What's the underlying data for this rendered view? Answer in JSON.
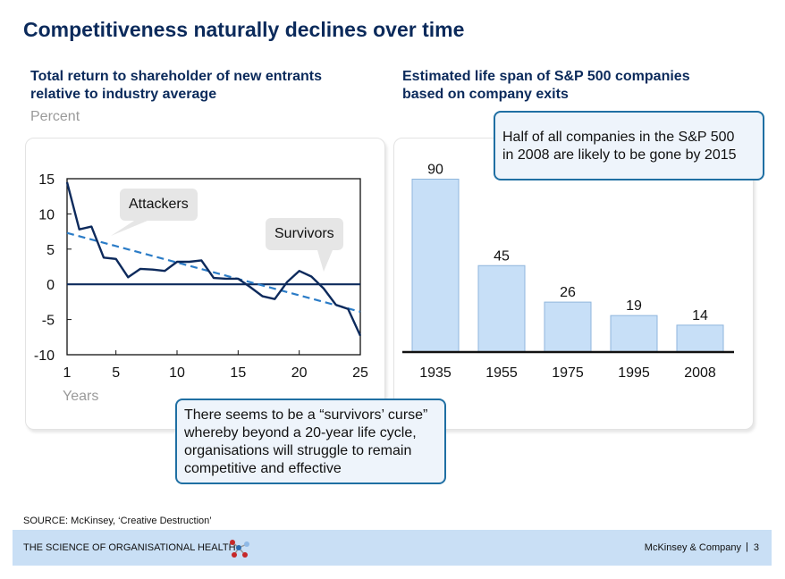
{
  "title": "Competitiveness naturally declines over time",
  "left": {
    "subtitle_line1": "Total return to shareholder of new entrants",
    "subtitle_line2": "relative to industry average",
    "unit": "Percent",
    "x_label": "Years",
    "attackers_label": "Attackers",
    "survivors_label": "Survivors"
  },
  "right": {
    "subtitle_line1": "Estimated life span of S&P 500 companies",
    "subtitle_line2": "based on company exits"
  },
  "callouts": {
    "sp500_line1": "Half of all companies in the S&P 500",
    "sp500_line2": "in 2008 are likely to be gone by 2015",
    "curse_line1": "There seems to be a “survivors’ curse”",
    "curse_line2": "whereby beyond a 20-year life cycle,",
    "curse_line3": "organisations will struggle to remain",
    "curse_line4": "competitive and effective"
  },
  "source": "SOURCE: McKinsey, ‘Creative Destruction’",
  "footer": {
    "left_text": "THE SCIENCE OF ORGANISATIONAL HEALTH",
    "right_text": "McKinsey & Company",
    "separator": "|",
    "page": "3"
  },
  "colors": {
    "navy": "#0b2a5b",
    "line": "#0d2a5c",
    "trend": "#2b7cc7",
    "bar_fill": "#c7dff7",
    "bar_stroke": "#8fb6dc",
    "callout_border": "#1f6fa3"
  },
  "chart_data": [
    {
      "type": "line",
      "x": [
        1,
        2,
        3,
        4,
        5,
        6,
        7,
        8,
        9,
        10,
        11,
        12,
        13,
        14,
        15,
        16,
        17,
        18,
        19,
        20,
        21,
        22,
        23,
        24,
        25
      ],
      "series": [
        {
          "values": [
            14.5,
            7.8,
            8.2,
            3.8,
            3.6,
            1.0,
            2.2,
            2.1,
            1.9,
            3.2,
            3.2,
            3.4,
            0.9,
            0.8,
            0.8,
            -0.4,
            -1.7,
            -2.1,
            0.3,
            1.9,
            1.1,
            -0.6,
            -2.9,
            -3.5,
            -7.3
          ]
        },
        {
          "values": [
            7.3,
            -3.9
          ],
          "x": [
            1,
            25
          ],
          "style": "dashed-trend"
        }
      ],
      "xticks": [
        1,
        5,
        10,
        15,
        20,
        25
      ],
      "yticks": [
        15,
        10,
        5,
        0,
        -5,
        -10
      ],
      "xlim": [
        1,
        25
      ],
      "ylim": [
        -10,
        15
      ],
      "xlabel": "Years",
      "ylabel": "Percent",
      "annotations": [
        "Attackers",
        "Survivors"
      ]
    },
    {
      "type": "bar",
      "categories": [
        "1935",
        "1955",
        "1975",
        "1995",
        "2008"
      ],
      "values": [
        90,
        45,
        26,
        19,
        14
      ],
      "data_labels": true
    }
  ]
}
